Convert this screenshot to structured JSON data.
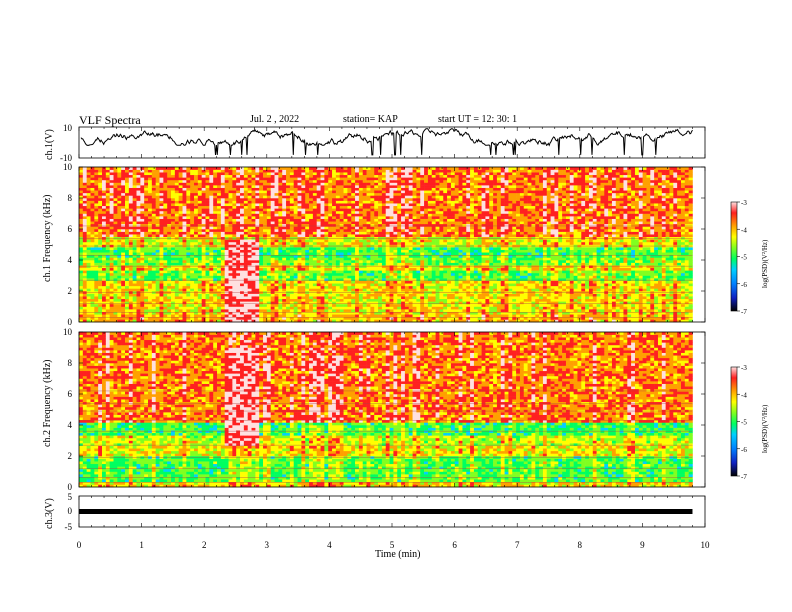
{
  "header": {
    "title": "VLF Spectra",
    "date": "Jul. 2 , 2022",
    "station": "station= KAP",
    "start_ut": "start UT = 12: 30: 1"
  },
  "colors": {
    "spectrogram_scale": [
      "#000000",
      "#1020c0",
      "#0080ff",
      "#00d0ff",
      "#00ff60",
      "#80ff20",
      "#ffff00",
      "#ffa000",
      "#ff2020",
      "#ffe0e0"
    ],
    "trace": "#000000"
  },
  "chart_data": [
    {
      "type": "line",
      "name": "ch1-waveform",
      "ylabel": "ch.1(V)",
      "ylim": [
        -10,
        10
      ],
      "yticks": [
        "10",
        "-10"
      ],
      "xlim": [
        0,
        10
      ],
      "description_visible": "noisy black trace, mostly between 0 and 8 V"
    },
    {
      "type": "heatmap",
      "name": "ch1-spectrogram",
      "ylabel": "ch.1 Frequency (kHz)",
      "ylim": [
        0,
        10
      ],
      "yticks": [
        "0",
        "2",
        "4",
        "6",
        "8",
        "10"
      ],
      "xlim": [
        0,
        10
      ],
      "data_end_min": 9.8,
      "colorbar": {
        "label": "log(PSD)(V²/Hz)",
        "range": [
          -7,
          -3
        ],
        "ticks": [
          "-3",
          "-4",
          "-5",
          "-6",
          "-7"
        ]
      },
      "bands_khz": [
        {
          "from": 0,
          "to": 0.5,
          "level": -4.2
        },
        {
          "from": 0.5,
          "to": 2.6,
          "level": -4.4
        },
        {
          "from": 2.6,
          "to": 3.4,
          "level": -5.0
        },
        {
          "from": 3.4,
          "to": 3.7,
          "level": -4.4
        },
        {
          "from": 3.7,
          "to": 4.2,
          "level": -4.9
        },
        {
          "from": 4.2,
          "to": 4.9,
          "level": -5.1
        },
        {
          "from": 4.9,
          "to": 5.5,
          "level": -4.5
        },
        {
          "from": 5.5,
          "to": 10,
          "level": -3.9
        }
      ],
      "burst": {
        "x": [
          2.3,
          2.9
        ],
        "f": [
          0,
          5.3
        ]
      }
    },
    {
      "type": "heatmap",
      "name": "ch2-spectrogram",
      "ylabel": "ch.2 Frequency (kHz)",
      "ylim": [
        0,
        10
      ],
      "yticks": [
        "0",
        "2",
        "4",
        "6",
        "8",
        "10"
      ],
      "xlim": [
        0,
        10
      ],
      "data_end_min": 9.8,
      "colorbar": {
        "label": "log(PSD)(V²/Hz)",
        "range": [
          -7,
          -3
        ],
        "ticks": [
          "-3",
          "-4",
          "-5",
          "-6",
          "-7"
        ]
      },
      "bands_khz": [
        {
          "from": 0,
          "to": 0.4,
          "level": -4.3
        },
        {
          "from": 0.4,
          "to": 2.0,
          "level": -5.0
        },
        {
          "from": 2.0,
          "to": 2.6,
          "level": -4.4
        },
        {
          "from": 2.6,
          "to": 3.4,
          "level": -4.6
        },
        {
          "from": 3.4,
          "to": 4.2,
          "level": -5.1
        },
        {
          "from": 4.2,
          "to": 10,
          "level": -3.9
        }
      ],
      "burst": {
        "x": [
          2.3,
          2.9
        ],
        "f": [
          2.6,
          9.0
        ]
      }
    },
    {
      "type": "line",
      "name": "ch3-waveform",
      "ylabel": "ch.3(V)",
      "ylim": [
        -5,
        5
      ],
      "yticks": [
        "5",
        "0",
        "-5"
      ],
      "xlim": [
        0,
        10
      ],
      "constant_value": 0
    }
  ],
  "xaxis": {
    "label": "Time (min)",
    "ticks": [
      "0",
      "1",
      "2",
      "3",
      "4",
      "5",
      "6",
      "7",
      "8",
      "9",
      "10"
    ]
  }
}
